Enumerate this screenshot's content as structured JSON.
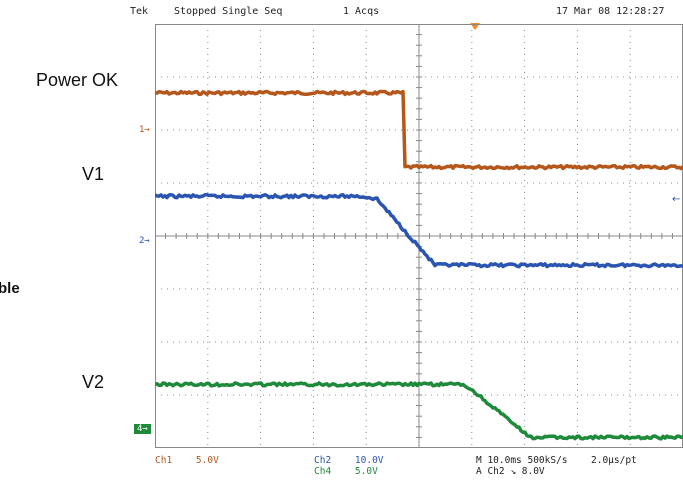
{
  "header": {
    "brand": "Tek",
    "status": "Stopped  Single Seq",
    "acqs": "1 Acqs",
    "timestamp": "17 Mar 08 12:28:27"
  },
  "labels": {
    "power_ok": "Power OK",
    "v1": "V1",
    "v2": "V2",
    "cropped": "ble"
  },
  "channel_markers": {
    "ch1": "1",
    "ch2": "2",
    "ch4": "4"
  },
  "footer": {
    "ch1_name": "Ch1",
    "ch1_scale": "5.0V",
    "ch2_name": "Ch2",
    "ch2_scale": "10.0V",
    "ch4_name": "Ch4",
    "ch4_scale": "5.0V",
    "timebase": "M 10.0ms 500kS/s",
    "sample_rate": "2.0µs/pt",
    "trigger": "A  Ch2  ↘  8.0V"
  },
  "colors": {
    "ch1": "#b5561b",
    "ch2": "#2a55b0",
    "ch4": "#1e8a3a",
    "grid": "#888888",
    "trigger": "#f08a2c"
  },
  "chart_data": {
    "type": "line",
    "title": "",
    "x_unit_per_div": "10.0ms",
    "grid": true,
    "divisions": {
      "x": 10,
      "y": 8
    },
    "series": [
      {
        "name": "Power OK",
        "color": "#b5561b",
        "x": [
          0,
          4.7,
          4.7,
          10
        ],
        "y": [
          6.7,
          6.7,
          5.3,
          5.3
        ]
      },
      {
        "name": "V1",
        "color": "#2a55b0",
        "x": [
          0,
          3.9,
          4.2,
          5.3,
          10
        ],
        "y": [
          4.75,
          4.75,
          4.7,
          3.45,
          3.45
        ]
      },
      {
        "name": "V2",
        "color": "#1e8a3a",
        "x": [
          0,
          5.8,
          6.0,
          7.1,
          10
        ],
        "y": [
          1.2,
          1.2,
          1.1,
          0.2,
          0.2
        ]
      }
    ]
  }
}
